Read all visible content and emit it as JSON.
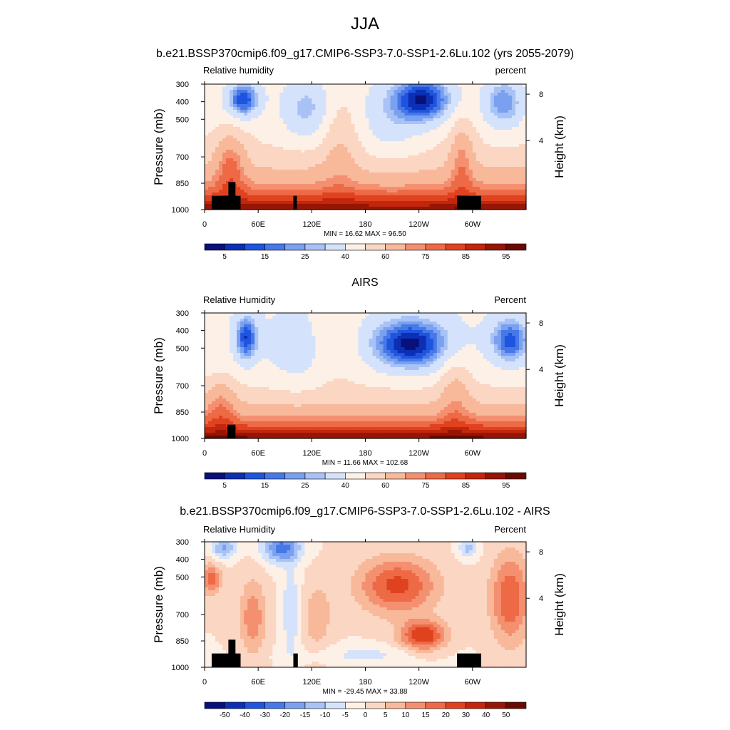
{
  "figure": {
    "title": "JJA"
  },
  "chart_data": [
    {
      "type": "heatmap",
      "title": "b.e21.BSSP370cmip6.f09_g17.CMIP6-SSP3-7.0-SSP1-2.6Lu.102 (yrs 2055-2079)",
      "left_string": "Relative humidity",
      "right_string": "percent",
      "ylabel": "Pressure (mb)",
      "y2label": "Height (km)",
      "x_ticks": [
        "0",
        "60E",
        "120E",
        "180",
        "120W",
        "60W"
      ],
      "y_ticks": [
        "300",
        "400",
        "500",
        "700",
        "850",
        "1000"
      ],
      "y2_ticks": [
        "8",
        "4"
      ],
      "min": 16.62,
      "max": 96.5,
      "min_max_label": "MIN =  16.62  MAX =  96.50",
      "colorbar_labels": [
        "5",
        "15",
        "25",
        "40",
        "60",
        "75",
        "85",
        "95"
      ],
      "colorbar_colors": [
        "#08107a",
        "#0d2fb4",
        "#1f55de",
        "#4678e8",
        "#7aa0f0",
        "#a8c2f6",
        "#d4e3fb",
        "#fdf0e6",
        "#fbd6c2",
        "#f8b89a",
        "#f49070",
        "#ee6a46",
        "#e0421f",
        "#c2260d",
        "#971505",
        "#6a0902"
      ]
    },
    {
      "type": "heatmap",
      "title": "AIRS",
      "left_string": "Relative Humidity",
      "right_string": "Percent",
      "ylabel": "Pressure (mb)",
      "y2label": "Height (km)",
      "x_ticks": [
        "0",
        "60E",
        "120E",
        "180",
        "120W",
        "60W"
      ],
      "y_ticks": [
        "300",
        "400",
        "500",
        "700",
        "850",
        "1000"
      ],
      "y2_ticks": [
        "8",
        "4"
      ],
      "min": 11.66,
      "max": 102.68,
      "min_max_label": "MIN =  11.66  MAX = 102.68",
      "colorbar_labels": [
        "5",
        "15",
        "25",
        "40",
        "60",
        "75",
        "85",
        "95"
      ],
      "colorbar_colors": [
        "#08107a",
        "#0d2fb4",
        "#1f55de",
        "#4678e8",
        "#7aa0f0",
        "#a8c2f6",
        "#d4e3fb",
        "#fdf0e6",
        "#fbd6c2",
        "#f8b89a",
        "#f49070",
        "#ee6a46",
        "#e0421f",
        "#c2260d",
        "#971505",
        "#6a0902"
      ]
    },
    {
      "type": "heatmap",
      "title": "b.e21.BSSP370cmip6.f09_g17.CMIP6-SSP3-7.0-SSP1-2.6Lu.102 - AIRS",
      "left_string": "Relative Humidity",
      "right_string": "Percent",
      "ylabel": "Pressure (mb)",
      "y2label": "Height (km)",
      "x_ticks": [
        "0",
        "60E",
        "120E",
        "180",
        "120W",
        "60W"
      ],
      "y_ticks": [
        "300",
        "400",
        "500",
        "700",
        "850",
        "1000"
      ],
      "y2_ticks": [
        "8",
        "4"
      ],
      "min": -29.45,
      "max": 33.88,
      "min_max_label": "MIN = -29.45  MAX =  33.88",
      "colorbar_labels": [
        "-50",
        "-40",
        "-30",
        "-20",
        "-15",
        "-10",
        "-5",
        "0",
        "5",
        "10",
        "15",
        "20",
        "30",
        "40",
        "50"
      ],
      "colorbar_colors": [
        "#08107a",
        "#0d2fb4",
        "#1f55de",
        "#4678e8",
        "#7aa0f0",
        "#a8c2f6",
        "#d4e3fb",
        "#fdf0e6",
        "#fbd6c2",
        "#f8b89a",
        "#f49070",
        "#ee6a46",
        "#e0421f",
        "#c2260d",
        "#971505",
        "#6a0902"
      ]
    }
  ]
}
